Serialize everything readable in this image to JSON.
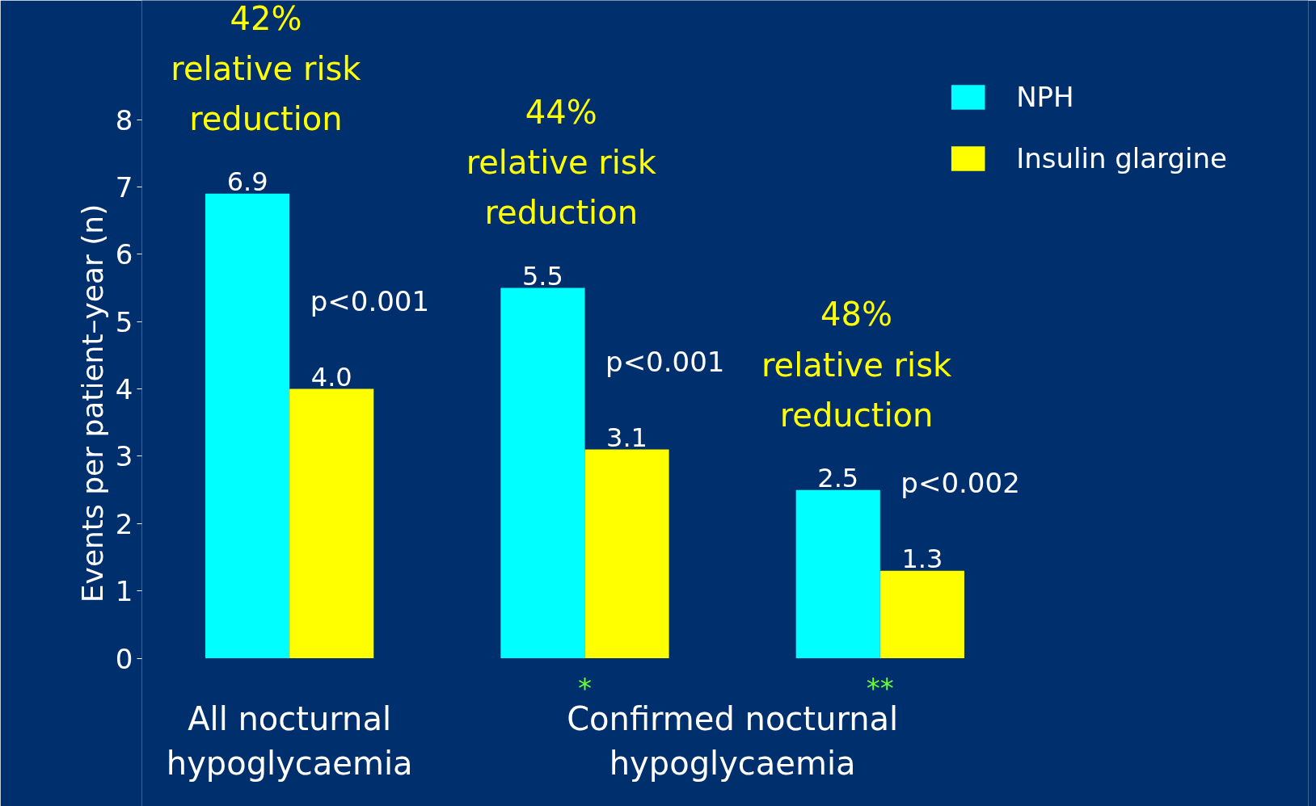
{
  "chart_data": {
    "type": "bar",
    "ylabel": "Events per patient–year (n)",
    "categories": [
      "All nocturnal hypoglycaemia",
      "*",
      "**"
    ],
    "series": [
      {
        "name": "NPH",
        "color": "#00ffff",
        "values": [
          6.9,
          5.5,
          2.5
        ],
        "value_labels": [
          "6.9",
          "5.5",
          "2.5"
        ]
      },
      {
        "name": "Insulin glargine",
        "color": "#ffff00",
        "values": [
          4.0,
          3.1,
          1.3
        ],
        "value_labels": [
          "4.0",
          "3.1",
          "1.3"
        ]
      }
    ],
    "ylim": [
      -2.2,
      9.77
    ],
    "yticks": [
      0,
      1,
      2,
      3,
      4,
      5,
      6,
      7,
      8
    ],
    "grid": false,
    "legend": "top right",
    "annotations": [
      "42%\nrelative risk\nreduction",
      "44%\nrelative risk\nreduction",
      "48%\nrelative risk\nreduction",
      "p<0.001",
      "p<0.001",
      "p<0.002",
      "Confirmed nocturnal hypoglycaemia"
    ]
  }
}
